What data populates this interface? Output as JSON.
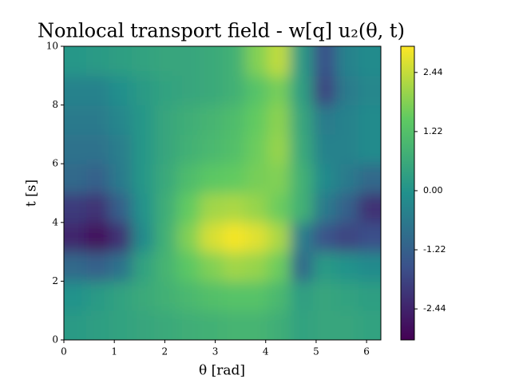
{
  "chart_data": {
    "type": "heatmap",
    "title": "Nonlocal transport field - w[q] u₂(θ, t)",
    "xlabel": "θ [rad]",
    "ylabel": "t [s]",
    "xlim": [
      0,
      6.283
    ],
    "ylim": [
      0,
      10
    ],
    "xticks": [
      0,
      1,
      2,
      3,
      4,
      5,
      6
    ],
    "yticks": [
      0,
      2,
      4,
      6,
      8,
      10
    ],
    "x": [
      0.22,
      0.67,
      1.12,
      1.57,
      2.02,
      2.47,
      2.92,
      3.37,
      3.82,
      4.26,
      4.71,
      5.16,
      5.61,
      6.06
    ],
    "y": [
      0.5,
      1.5,
      2.5,
      3.5,
      4.5,
      5.5,
      6.5,
      7.5,
      8.5,
      9.5
    ],
    "z": [
      [
        0.2,
        0.3,
        0.4,
        0.5,
        0.6,
        0.7,
        0.8,
        0.9,
        0.9,
        0.7,
        0.4,
        0.5,
        0.5,
        0.4
      ],
      [
        0.0,
        0.2,
        0.4,
        0.6,
        0.8,
        1.0,
        1.2,
        1.3,
        1.3,
        1.0,
        0.3,
        0.5,
        0.4,
        0.3
      ],
      [
        -1.0,
        -1.2,
        -0.8,
        0.4,
        0.9,
        1.4,
        1.8,
        2.1,
        2.0,
        1.6,
        -1.0,
        0.2,
        0.0,
        -0.2
      ],
      [
        -2.4,
        -2.9,
        -2.2,
        -0.2,
        0.8,
        1.8,
        2.6,
        2.9,
        2.7,
        2.2,
        -0.5,
        -1.5,
        -1.8,
        -1.6
      ],
      [
        -2.0,
        -2.2,
        -1.2,
        0.0,
        0.7,
        1.5,
        2.1,
        2.2,
        2.0,
        1.6,
        0.8,
        -0.6,
        -1.2,
        -2.2
      ],
      [
        -1.0,
        -1.2,
        -0.6,
        0.1,
        0.6,
        1.1,
        1.4,
        1.5,
        1.7,
        1.8,
        0.8,
        -0.2,
        -0.6,
        -1.0
      ],
      [
        -0.8,
        -0.8,
        -0.5,
        0.1,
        0.5,
        0.8,
        1.0,
        1.2,
        1.6,
        2.0,
        0.6,
        -0.4,
        -0.4,
        -0.2
      ],
      [
        -0.6,
        -0.6,
        -0.3,
        0.1,
        0.5,
        0.7,
        0.9,
        1.1,
        1.5,
        1.9,
        0.5,
        -0.6,
        -0.4,
        -0.2
      ],
      [
        -0.4,
        -0.4,
        -0.1,
        0.2,
        0.4,
        0.5,
        0.6,
        0.8,
        1.3,
        1.7,
        0.3,
        -1.8,
        -0.6,
        -0.3
      ],
      [
        0.1,
        0.2,
        0.3,
        0.4,
        0.5,
        0.5,
        0.6,
        0.8,
        1.8,
        2.4,
        0.2,
        -1.6,
        -0.4,
        -0.2
      ]
    ],
    "colormap": "viridis",
    "clim": [
      -3.08,
      2.98
    ],
    "cticks": [
      -2.44,
      -1.22,
      {
        "value": 0,
        "label": "0.00"
      },
      1.22,
      2.44
    ]
  }
}
